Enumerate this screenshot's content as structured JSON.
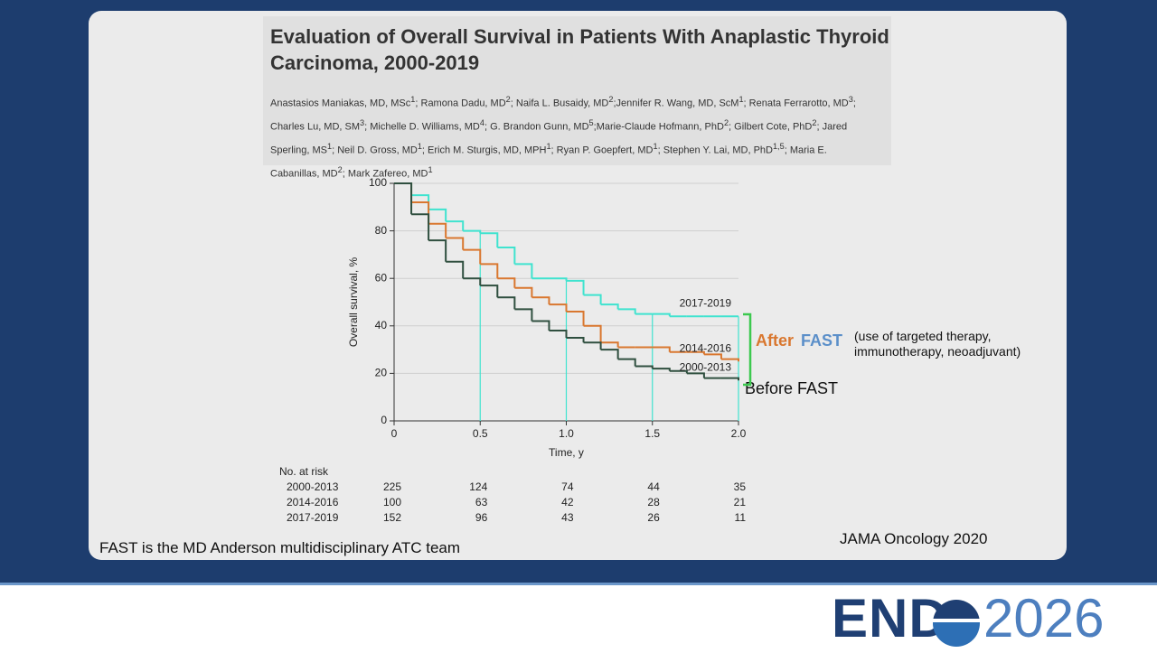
{
  "header": {
    "title": "Evaluation of Overall Survival in Patients With Anaplastic Thyroid Carcinoma, 2000-2019",
    "authors": [
      {
        "name": "Anastasios Maniakas, MD, MSc",
        "sup": "1",
        "sep": "; "
      },
      {
        "name": "Ramona Dadu, MD",
        "sup": "2",
        "sep": "; "
      },
      {
        "name": "Naifa L. Busaidy, MD",
        "sup": "2",
        "sep": ";"
      },
      {
        "name": "Jennifer R. Wang, MD, ScM",
        "sup": "1",
        "sep": "; "
      },
      {
        "name": "Renata Ferrarotto, MD",
        "sup": "3",
        "sep": "; "
      },
      {
        "name": "Charles Lu, MD, SM",
        "sup": "3",
        "sep": "; "
      },
      {
        "name": "Michelle D. Williams, MD",
        "sup": "4",
        "sep": "; "
      },
      {
        "name": "G. Brandon Gunn, MD",
        "sup": "5",
        "sep": ";"
      },
      {
        "name": "Marie-Claude Hofmann, PhD",
        "sup": "2",
        "sep": "; "
      },
      {
        "name": "Gilbert Cote, PhD",
        "sup": "2",
        "sep": "; "
      },
      {
        "name": "Jared Sperling, MS",
        "sup": "1",
        "sep": "; "
      },
      {
        "name": "Neil D. Gross, MD",
        "sup": "1",
        "sep": "; "
      },
      {
        "name": "Erich M. Sturgis, MD, MPH",
        "sup": "1",
        "sep": "; "
      },
      {
        "name": "Ryan P. Goepfert, MD",
        "sup": "1",
        "sep": "; "
      },
      {
        "name": "Stephen Y. Lai, MD, PhD",
        "sup": "1,5",
        "sep": "; "
      },
      {
        "name": "Maria E. Cabanillas, MD",
        "sup": "2",
        "sep": "; "
      },
      {
        "name": "Mark Zafereo, MD",
        "sup": "1",
        "sep": ""
      }
    ]
  },
  "chart_data": {
    "type": "line",
    "step": true,
    "x": [
      0,
      0.1,
      0.2,
      0.3,
      0.4,
      0.5,
      0.6,
      0.7,
      0.8,
      0.9,
      1.0,
      1.1,
      1.2,
      1.3,
      1.4,
      1.5,
      1.6,
      1.7,
      1.8,
      1.9,
      2.0
    ],
    "series": [
      {
        "name": "2017-2019",
        "color": "#3fe3cf",
        "values": [
          100,
          95,
          89,
          84,
          80,
          79,
          73,
          66,
          60,
          60,
          59,
          53,
          49,
          47,
          45,
          45,
          44,
          44,
          44,
          44,
          44
        ]
      },
      {
        "name": "2014-2016",
        "color": "#d9772f",
        "values": [
          100,
          92,
          83,
          77,
          72,
          66,
          60,
          56,
          52,
          49,
          46,
          40,
          33,
          31,
          31,
          31,
          29,
          29,
          28,
          26,
          25
        ]
      },
      {
        "name": "2000-2013",
        "color": "#2f4f3f",
        "values": [
          100,
          87,
          76,
          67,
          60,
          57,
          52,
          47,
          42,
          38,
          35,
          33,
          30,
          26,
          23,
          22,
          21,
          20,
          18,
          18,
          17
        ]
      }
    ],
    "xlim": [
      0,
      2
    ],
    "ylim": [
      0,
      100
    ],
    "xticks": [
      0,
      0.5,
      {
        "value": 1,
        "label": "1.0"
      },
      1.5,
      {
        "value": 2,
        "label": "2.0"
      }
    ],
    "yticks": [
      0,
      20,
      40,
      60,
      80,
      100
    ],
    "xlabel": "Time, y",
    "ylabel": "Overall survival, %",
    "grid": true
  },
  "risk_table": {
    "title": "No. at risk",
    "rows": [
      {
        "label": "2000-2013",
        "values": [
          225,
          124,
          74,
          44,
          35
        ]
      },
      {
        "label": "2014-2016",
        "values": [
          100,
          63,
          42,
          28,
          21
        ]
      },
      {
        "label": "2017-2019",
        "values": [
          152,
          96,
          43,
          26,
          11
        ]
      }
    ]
  },
  "annotations": {
    "after": "After",
    "fast": "FAST",
    "note_1": "(use of targeted therapy,",
    "note_2": "immunotherapy,  neoadjuvant)",
    "before": "Before FAST"
  },
  "footer": {
    "team": "FAST is the MD Anderson multidisciplinary ATC team",
    "source": "JAMA Oncology 2020",
    "logo_a": "END",
    "logo_b": "2026"
  }
}
